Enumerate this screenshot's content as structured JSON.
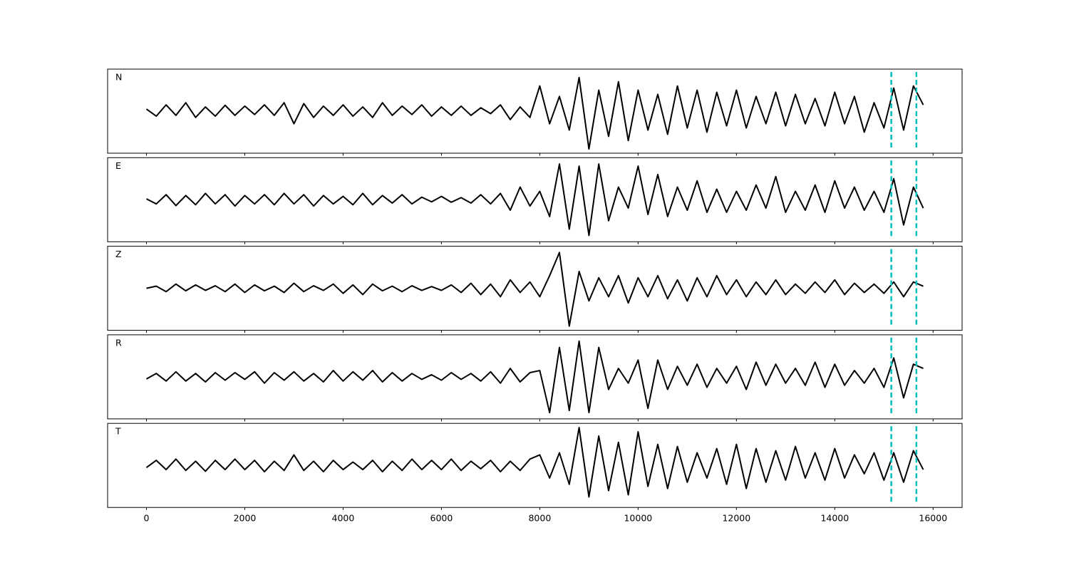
{
  "chart_data": {
    "type": "line",
    "subplots": true,
    "x": [
      0,
      200,
      400,
      600,
      800,
      1000,
      1200,
      1400,
      1600,
      1800,
      2000,
      2200,
      2400,
      2600,
      2800,
      3000,
      3200,
      3400,
      3600,
      3800,
      4000,
      4200,
      4400,
      4600,
      4800,
      5000,
      5200,
      5400,
      5600,
      5800,
      6000,
      6200,
      6400,
      6600,
      6800,
      7000,
      7200,
      7400,
      7600,
      7800,
      8000,
      8200,
      8400,
      8600,
      8800,
      9000,
      9200,
      9400,
      9600,
      9800,
      10000,
      10200,
      10400,
      10600,
      10800,
      11000,
      11200,
      11400,
      11600,
      11800,
      12000,
      12200,
      12400,
      12600,
      12800,
      13000,
      13200,
      13400,
      13600,
      13800,
      14000,
      14200,
      14400,
      14600,
      14800,
      15000,
      15200,
      15400,
      15600,
      15800
    ],
    "series": [
      {
        "name": "N",
        "color": "#000000",
        "values": [
          0.05,
          -0.12,
          0.15,
          -0.1,
          0.2,
          -0.15,
          0.1,
          -0.12,
          0.14,
          -0.1,
          0.12,
          -0.08,
          0.15,
          -0.1,
          0.2,
          -0.3,
          0.18,
          -0.15,
          0.12,
          -0.1,
          0.15,
          -0.12,
          0.1,
          -0.15,
          0.2,
          -0.1,
          0.12,
          -0.08,
          0.15,
          -0.12,
          0.1,
          -0.1,
          0.12,
          -0.1,
          0.08,
          -0.06,
          0.15,
          -0.2,
          0.1,
          -0.15,
          0.6,
          -0.3,
          0.35,
          -0.45,
          0.8,
          -0.9,
          0.5,
          -0.6,
          0.7,
          -0.7,
          0.5,
          -0.45,
          0.4,
          -0.55,
          0.6,
          -0.4,
          0.5,
          -0.5,
          0.45,
          -0.35,
          0.5,
          -0.4,
          0.35,
          -0.3,
          0.45,
          -0.35,
          0.4,
          -0.3,
          0.3,
          -0.35,
          0.45,
          -0.3,
          0.35,
          -0.5,
          0.2,
          -0.4,
          0.55,
          -0.45,
          0.6,
          0.15
        ]
      },
      {
        "name": "E",
        "color": "#000000",
        "values": [
          0.02,
          -0.1,
          0.12,
          -0.14,
          0.1,
          -0.12,
          0.15,
          -0.1,
          0.12,
          -0.15,
          0.1,
          -0.1,
          0.12,
          -0.12,
          0.15,
          -0.1,
          0.12,
          -0.15,
          0.1,
          -0.1,
          0.08,
          -0.12,
          0.15,
          -0.12,
          0.1,
          -0.08,
          0.12,
          -0.1,
          0.06,
          -0.05,
          0.08,
          -0.06,
          0.05,
          -0.08,
          0.12,
          -0.1,
          0.15,
          -0.25,
          0.3,
          -0.15,
          0.2,
          -0.4,
          0.85,
          -0.7,
          0.8,
          -0.85,
          0.85,
          -0.5,
          0.3,
          -0.2,
          0.8,
          -0.35,
          0.6,
          -0.4,
          0.3,
          -0.25,
          0.45,
          -0.3,
          0.25,
          -0.3,
          0.2,
          -0.25,
          0.35,
          -0.2,
          0.55,
          -0.3,
          0.2,
          -0.25,
          0.35,
          -0.3,
          0.45,
          -0.2,
          0.3,
          -0.25,
          0.2,
          -0.3,
          0.5,
          -0.6,
          0.3,
          -0.2
        ]
      },
      {
        "name": "Z",
        "color": "#000000",
        "values": [
          0,
          0.05,
          -0.08,
          0.1,
          -0.06,
          0.08,
          -0.05,
          0.06,
          -0.08,
          0.1,
          -0.1,
          0.08,
          -0.06,
          0.05,
          -0.1,
          0.12,
          -0.08,
          0.06,
          -0.05,
          0.1,
          -0.12,
          0.08,
          -0.15,
          0.1,
          -0.06,
          0.05,
          -0.08,
          0.06,
          -0.05,
          0.04,
          -0.05,
          0.08,
          -0.1,
          0.12,
          -0.15,
          0.1,
          -0.2,
          0.2,
          -0.1,
          0.15,
          -0.2,
          0.3,
          0.85,
          -0.9,
          0.4,
          -0.3,
          0.25,
          -0.2,
          0.3,
          -0.35,
          0.25,
          -0.2,
          0.3,
          -0.25,
          0.2,
          -0.3,
          0.25,
          -0.2,
          0.3,
          -0.15,
          0.2,
          -0.2,
          0.15,
          -0.15,
          0.2,
          -0.15,
          0.1,
          -0.12,
          0.15,
          -0.1,
          0.2,
          -0.15,
          0.12,
          -0.1,
          0.1,
          -0.12,
          0.15,
          -0.2,
          0.15,
          0.05
        ]
      },
      {
        "name": "R",
        "color": "#000000",
        "values": [
          -0.05,
          0.08,
          -0.1,
          0.12,
          -0.1,
          0.08,
          -0.12,
          0.1,
          -0.08,
          0.1,
          -0.06,
          0.12,
          -0.15,
          0.1,
          -0.08,
          0.12,
          -0.1,
          0.08,
          -0.12,
          0.15,
          -0.1,
          0.12,
          -0.08,
          0.15,
          -0.12,
          0.1,
          -0.1,
          0.08,
          -0.06,
          0.05,
          -0.08,
          0.1,
          -0.06,
          0.08,
          -0.1,
          0.12,
          -0.15,
          0.2,
          -0.12,
          0.1,
          0.15,
          -0.85,
          0.7,
          -0.8,
          0.85,
          -0.85,
          0.7,
          -0.3,
          0.2,
          -0.15,
          0.4,
          -0.75,
          0.4,
          -0.3,
          0.25,
          -0.2,
          0.3,
          -0.25,
          0.2,
          -0.15,
          0.25,
          -0.3,
          0.35,
          -0.2,
          0.3,
          -0.15,
          0.2,
          -0.2,
          0.35,
          -0.25,
          0.3,
          -0.2,
          0.15,
          -0.15,
          0.2,
          -0.25,
          0.45,
          -0.5,
          0.3,
          0.2
        ]
      },
      {
        "name": "T",
        "color": "#000000",
        "values": [
          -0.05,
          0.12,
          -0.1,
          0.15,
          -0.12,
          0.1,
          -0.14,
          0.12,
          -0.1,
          0.15,
          -0.1,
          0.12,
          -0.15,
          0.1,
          -0.12,
          0.25,
          -0.12,
          0.1,
          -0.15,
          0.12,
          -0.1,
          0.08,
          -0.1,
          0.12,
          -0.15,
          0.1,
          -0.12,
          0.15,
          -0.1,
          0.12,
          -0.1,
          0.15,
          -0.12,
          0.1,
          -0.08,
          0.12,
          -0.15,
          0.1,
          -0.12,
          0.15,
          0.25,
          -0.3,
          0.3,
          -0.45,
          0.9,
          -0.75,
          0.7,
          -0.6,
          0.55,
          -0.7,
          0.8,
          -0.5,
          0.5,
          -0.55,
          0.45,
          -0.4,
          0.3,
          -0.3,
          0.4,
          -0.45,
          0.5,
          -0.55,
          0.4,
          -0.4,
          0.35,
          -0.35,
          0.45,
          -0.3,
          0.3,
          -0.35,
          0.4,
          -0.3,
          0.25,
          -0.2,
          0.3,
          -0.35,
          0.3,
          -0.4,
          0.35,
          -0.1
        ]
      }
    ],
    "vlines": [
      15150,
      15660
    ],
    "vline_color": "#00bfbf",
    "xlim": [
      -790,
      16590
    ],
    "xticks": [
      0,
      2000,
      4000,
      6000,
      8000,
      10000,
      12000,
      14000,
      16000
    ],
    "ylim": [
      -1,
      1
    ]
  }
}
